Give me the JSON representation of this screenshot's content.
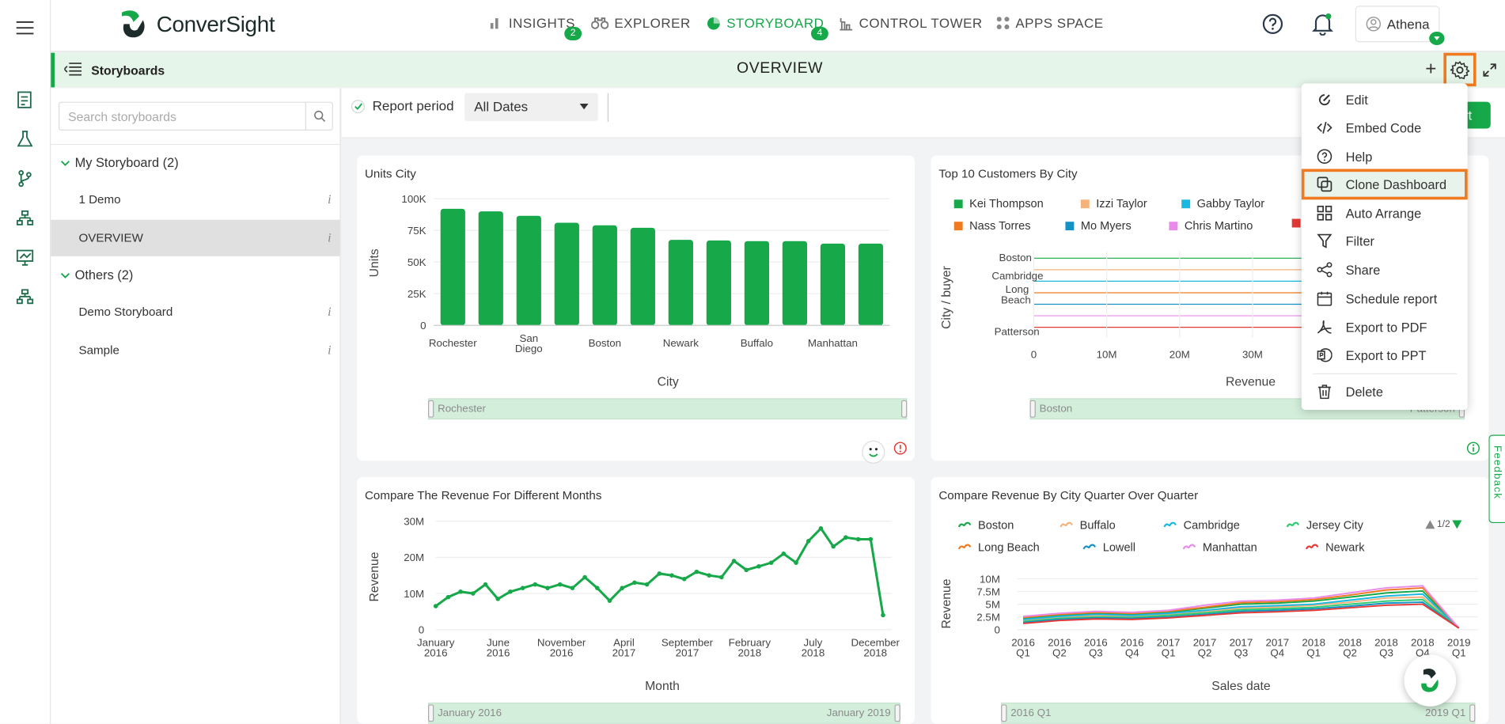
{
  "app": {
    "brand": "ConverSight",
    "accent": "#17a84a",
    "highlight": "#f07a1f"
  },
  "nav": {
    "items": [
      {
        "label": "INSIGHTS",
        "icon": "bar-chart-icon",
        "badge": "2"
      },
      {
        "label": "EXPLORER",
        "icon": "binoculars-icon"
      },
      {
        "label": "STORYBOARD",
        "icon": "storyboard-icon",
        "badge": "4",
        "active": true
      },
      {
        "label": "CONTROL TOWER",
        "icon": "control-tower-icon"
      },
      {
        "label": "APPS SPACE",
        "icon": "apps-grid-icon"
      }
    ],
    "user": "Athena"
  },
  "subheader": {
    "section": "Storyboards",
    "title": "OVERVIEW"
  },
  "sidebar": {
    "search_placeholder": "Search storyboards",
    "groups": [
      {
        "label": "My Storyboard (2)",
        "items": [
          {
            "label": "1 Demo"
          },
          {
            "label": "OVERVIEW",
            "active": true
          }
        ]
      },
      {
        "label": "Others (2)",
        "items": [
          {
            "label": "Demo Storyboard"
          },
          {
            "label": "Sample"
          }
        ]
      }
    ],
    "info_glyph": "i"
  },
  "filter": {
    "label": "Report period",
    "value": "All Dates",
    "button_fragment": "rt"
  },
  "menu": {
    "items": [
      {
        "label": "Edit",
        "icon": "edit-icon"
      },
      {
        "label": "Embed Code",
        "icon": "code-icon"
      },
      {
        "label": "Help",
        "icon": "help-icon"
      },
      {
        "label": "Clone Dashboard",
        "icon": "clone-icon",
        "highlighted": true
      },
      {
        "label": "Auto Arrange",
        "icon": "grid-arrange-icon"
      },
      {
        "label": "Filter",
        "icon": "filter-icon"
      },
      {
        "label": "Share",
        "icon": "share-icon"
      },
      {
        "label": "Schedule report",
        "icon": "calendar-icon"
      },
      {
        "label": "Export to PDF",
        "icon": "pdf-icon"
      },
      {
        "label": "Export to PPT",
        "icon": "ppt-icon"
      },
      {
        "label": "Delete",
        "icon": "trash-icon"
      }
    ]
  },
  "feedback": "Feedback",
  "chart_data": [
    {
      "type": "bar",
      "title": "Units City",
      "xlabel": "City",
      "ylabel": "Units",
      "categories": [
        "Rochester",
        "",
        "San Diego",
        "",
        "Boston",
        "",
        "Newark",
        "",
        "Buffalo",
        "",
        "Manhattan",
        ""
      ],
      "values": [
        92000,
        90000,
        86500,
        81000,
        79000,
        77000,
        67500,
        67000,
        66500,
        66500,
        64500,
        64500
      ],
      "yticks": [
        "0",
        "25K",
        "50K",
        "75K",
        "100K"
      ],
      "ylim": [
        0,
        100000
      ],
      "slider_label": "Rochester",
      "color": "#17a84a"
    },
    {
      "type": "line",
      "title": "Top 10 Customers By City",
      "xlabel": "Revenue",
      "ylabel": "City / buyer",
      "legend": [
        {
          "name": "Kei Thompson",
          "color": "#17a84a"
        },
        {
          "name": "Izzi Taylor",
          "color": "#f5b27a"
        },
        {
          "name": "Gabby Taylor",
          "color": "#1ab8e0"
        },
        {
          "name": "Nass Torres",
          "color": "#f07a1f"
        },
        {
          "name": "Mo Myers",
          "color": "#1592c4"
        },
        {
          "name": "Chris Martino",
          "color": "#e98be8"
        },
        {
          "name": "",
          "color": "#e53935"
        }
      ],
      "ycategories": [
        "Boston",
        "Cambridge",
        "Long Beach",
        "Patterson"
      ],
      "xticks": [
        "0",
        "10M",
        "20M",
        "30M"
      ],
      "slider_left": "Boston",
      "slider_right": "Patterson"
    },
    {
      "type": "line",
      "title": "Compare The Revenue For Different Months",
      "xlabel": "Month",
      "ylabel": "Revenue",
      "xticks": [
        [
          "January",
          "2016"
        ],
        [
          "June",
          "2016"
        ],
        [
          "November",
          "2016"
        ],
        [
          "April",
          "2017"
        ],
        [
          "September",
          "2017"
        ],
        [
          "February",
          "2018"
        ],
        [
          "July",
          "2018"
        ],
        [
          "December",
          "2018"
        ]
      ],
      "yticks": [
        "0",
        "10M",
        "20M",
        "30M"
      ],
      "ylim": [
        0,
        30000000
      ],
      "values": [
        6.5,
        9,
        10.5,
        10,
        12.5,
        8.5,
        10.5,
        11.5,
        12.5,
        11.5,
        12.5,
        11.5,
        14.5,
        11.5,
        8,
        11.5,
        13,
        12.5,
        15.5,
        15,
        14,
        16,
        15,
        14.5,
        19,
        16.5,
        17.5,
        18.5,
        21,
        18.5,
        24.5,
        28,
        23,
        25.5,
        25,
        25,
        4
      ],
      "unit": "M",
      "slider_left": "January 2016",
      "slider_right": "January 2019"
    },
    {
      "type": "line",
      "title": "Compare Revenue By City Quarter Over Quarter",
      "xlabel": "Sales date",
      "ylabel": "Revenue",
      "legend": [
        {
          "name": "Boston",
          "color": "#17a84a"
        },
        {
          "name": "Buffalo",
          "color": "#f5b27a"
        },
        {
          "name": "Cambridge",
          "color": "#1ab8e0"
        },
        {
          "name": "Jersey City",
          "color": "#2ecc71"
        },
        {
          "name": "Long Beach",
          "color": "#f07a1f"
        },
        {
          "name": "Lowell",
          "color": "#1592c4"
        },
        {
          "name": "Manhattan",
          "color": "#e98be8"
        },
        {
          "name": "Newark",
          "color": "#e53935"
        }
      ],
      "legend_page": "1/2",
      "xticks": [
        [
          "2016",
          "Q1"
        ],
        [
          "2016",
          "Q2"
        ],
        [
          "2016",
          "Q3"
        ],
        [
          "2016",
          "Q4"
        ],
        [
          "2017",
          "Q1"
        ],
        [
          "2017",
          "Q2"
        ],
        [
          "2017",
          "Q3"
        ],
        [
          "2017",
          "Q4"
        ],
        [
          "2018",
          "Q1"
        ],
        [
          "2018",
          "Q2"
        ],
        [
          "2018",
          "Q3"
        ],
        [
          "2018",
          "Q4"
        ],
        [
          "2019",
          "Q1"
        ]
      ],
      "yticks": [
        "0",
        "2.5M",
        "5M",
        "7.5M",
        "10M"
      ],
      "ylim": [
        0,
        10
      ],
      "series": [
        {
          "name": "Boston",
          "values": [
            2.2,
            2.8,
            3.2,
            3,
            3.4,
            4.2,
            5,
            5.2,
            5.6,
            6.4,
            7.2,
            7.6,
            0.3
          ]
        },
        {
          "name": "Buffalo",
          "values": [
            1.8,
            2.4,
            2.8,
            2.6,
            3,
            3.6,
            4.2,
            4.4,
            4.8,
            5.4,
            6.2,
            6.4,
            0.3
          ]
        },
        {
          "name": "Cambridge",
          "values": [
            2,
            2.6,
            3,
            2.8,
            3.2,
            3.8,
            4.5,
            4.7,
            5,
            5.8,
            6.6,
            7,
            0.3
          ]
        },
        {
          "name": "Jersey City",
          "values": [
            1.6,
            2.2,
            2.5,
            2.4,
            2.8,
            3.3,
            3.9,
            4.1,
            4.4,
            5,
            5.6,
            5.9,
            0.3
          ]
        },
        {
          "name": "Long Beach",
          "values": [
            2.4,
            3,
            3.4,
            3.2,
            3.6,
            4.4,
            5.3,
            5.5,
            5.9,
            6.8,
            7.8,
            8.2,
            0.3
          ]
        },
        {
          "name": "Lowell",
          "values": [
            1.4,
            2,
            2.3,
            2.2,
            2.5,
            3,
            3.6,
            3.8,
            4.1,
            4.6,
            5.2,
            5.4,
            0.3
          ]
        },
        {
          "name": "Manhattan",
          "values": [
            2.6,
            3.2,
            3.6,
            3.4,
            3.8,
            4.8,
            5.6,
            5.8,
            6.2,
            7.2,
            8.2,
            8.6,
            0.3
          ]
        },
        {
          "name": "Newark",
          "values": [
            1.2,
            1.8,
            2.1,
            2,
            2.3,
            2.8,
            3.3,
            3.5,
            3.8,
            4.3,
            4.8,
            5,
            0.3
          ]
        }
      ],
      "slider_left": "2016 Q1",
      "slider_right": "2019 Q1"
    }
  ]
}
